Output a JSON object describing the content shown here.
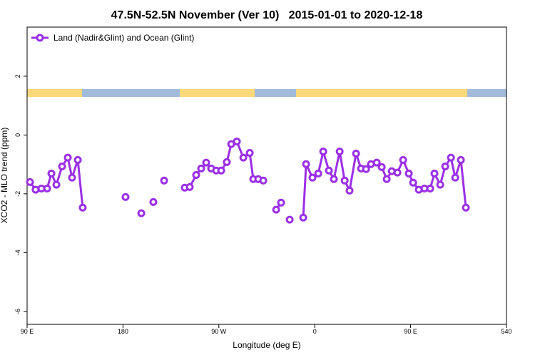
{
  "chart_data": {
    "type": "line",
    "title": "47.5N-52.5N November (Ver 10)   2015-01-01 to 2020-12-18",
    "xlabel": "Longitude (deg E)",
    "ylabel": "XCO2 - MLO trend (ppm)",
    "x": [
      92.7,
      98,
      103.4,
      108.8,
      112.8,
      117.5,
      122.8,
      128.2,
      132.2,
      137.6,
      142.2,
      null,
      182.4,
      null,
      197.2,
      null,
      208.5,
      null,
      218.6,
      null,
      238,
      242.7,
      248.7,
      253.4,
      258.1,
      262.8,
      267.5,
      272.2,
      277.5,
      281.6,
      286.9,
      293,
      299,
      302.3,
      307,
      311.7,
      null,
      323.8,
      328.4,
      null,
      336.5,
      null,
      349.2,
      351.9,
      357.9,
      363.3,
      368,
      373.3,
      378,
      383.4,
      388.1,
      392.7,
      398.8,
      403.5,
      408.2,
      412.8,
      418.2,
      422.9,
      427.6,
      432.3,
      437.6,
      443,
      448.3,
      452.4,
      457.7,
      463,
      468.4,
      472.4,
      477.8,
      482.5,
      487.9,
      491.9,
      497.2,
      501.9
    ],
    "series": [
      {
        "name": "Land (Nadir&Glint) and Ocean (Glint)",
        "color": "#9b2fe6",
        "values": [
          -1.6,
          -1.86,
          -1.82,
          -1.82,
          -1.31,
          -1.69,
          -1.07,
          -0.77,
          -1.45,
          -0.85,
          -2.47,
          null,
          -2.11,
          null,
          -2.66,
          null,
          -2.28,
          null,
          -1.55,
          null,
          -1.79,
          -1.77,
          -1.36,
          -1.14,
          -0.94,
          -1.14,
          -1.21,
          -1.21,
          -0.92,
          -0.31,
          -0.22,
          -0.77,
          -0.61,
          -1.5,
          -1.5,
          -1.55,
          null,
          -2.54,
          -2.3,
          null,
          -2.88,
          null,
          -2.81,
          -0.99,
          -1.45,
          -1.31,
          -0.56,
          -1.21,
          -1.5,
          -0.56,
          -1.55,
          -1.89,
          -0.63,
          -1.14,
          -1.16,
          -0.99,
          -0.94,
          -1.09,
          -1.5,
          -1.23,
          -1.28,
          -0.85,
          -1.31,
          -1.62,
          -1.86,
          -1.82,
          -1.82,
          -1.31,
          -1.69,
          -1.07,
          -0.77,
          -1.45,
          -0.85,
          -2.47
        ]
      }
    ],
    "xlim": [
      90,
      540
    ],
    "ylim": [
      -6.44,
      3.67
    ],
    "xticks": [
      {
        "value": 90,
        "label": "90 E"
      },
      180,
      {
        "value": 270,
        "label": "90 W"
      },
      {
        "value": 360,
        "label": "0"
      },
      {
        "value": 450,
        "label": "90 E"
      },
      540
    ],
    "yticks": [
      -6,
      -4,
      -2,
      0,
      2
    ],
    "legend": "top-left"
  }
}
